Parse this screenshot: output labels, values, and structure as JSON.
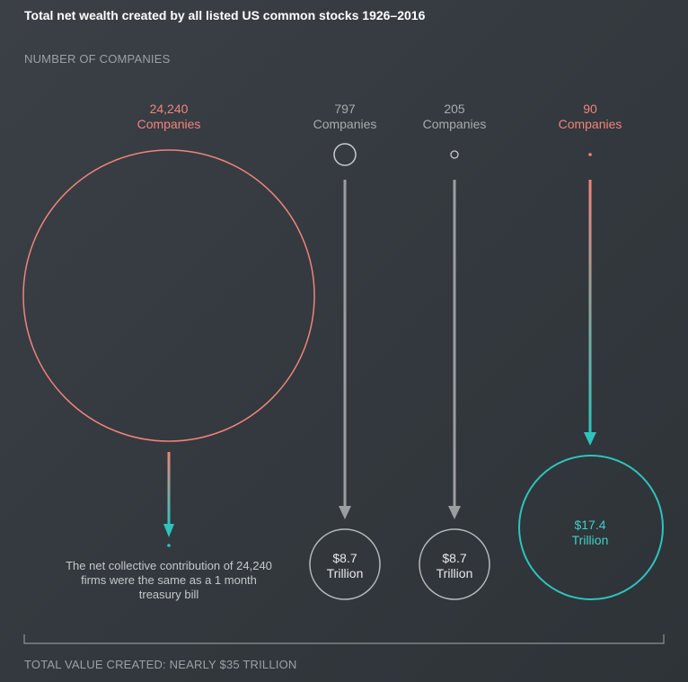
{
  "title": "Total net wealth created by all listed US common stocks 1926–2016",
  "subtitle": "NUMBER OF COMPANIES",
  "groups": [
    {
      "count": "24,240",
      "unit": "Companies"
    },
    {
      "count": "797",
      "unit": "Companies",
      "value": "$8.7",
      "value_unit": "Trillion"
    },
    {
      "count": "205",
      "unit": "Companies",
      "value": "$8.7",
      "value_unit": "Trillion"
    },
    {
      "count": "90",
      "unit": "Companies",
      "value": "$17.4",
      "value_unit": "Trillion"
    }
  ],
  "note": "The net collective contribution of 24,240 firms were the same as a 1 month treasury bill",
  "footer": "TOTAL VALUE CREATED: NEARLY $35 TRILLION",
  "colors": {
    "salmon": "#f0847b",
    "teal": "#2ec4bc",
    "grey": "#a7abae"
  }
}
